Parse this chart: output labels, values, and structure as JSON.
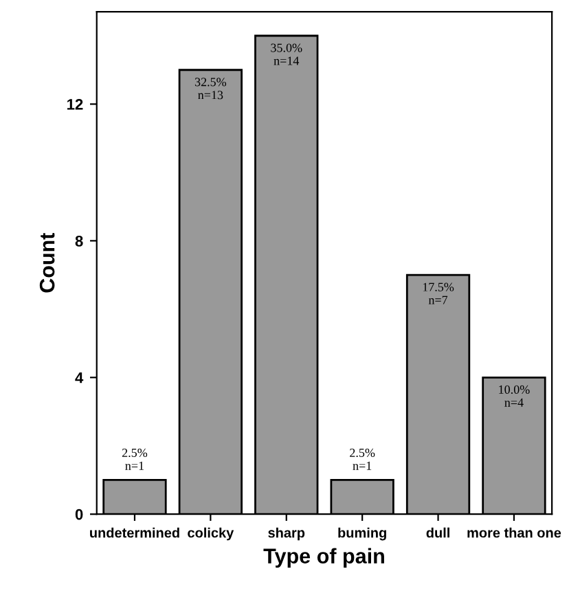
{
  "chart_data": {
    "type": "bar",
    "xlabel": "Type of pain",
    "ylabel": "Count",
    "categories": [
      "undetermined",
      "colicky",
      "sharp",
      "buming",
      "dull",
      "more than one"
    ],
    "values": [
      1,
      13,
      14,
      1,
      7,
      4
    ],
    "value_labels": [
      "2.5%\nn=1",
      "32.5%\nn=13",
      "35.0%\nn=14",
      "2.5%\nn=1",
      "17.5%\nn=7",
      "10.0%\nn=4"
    ],
    "color": "#999999",
    "ylim": [
      0,
      14.7
    ],
    "yticks": [
      0,
      4,
      8,
      12
    ],
    "grid": false,
    "legend": false
  }
}
